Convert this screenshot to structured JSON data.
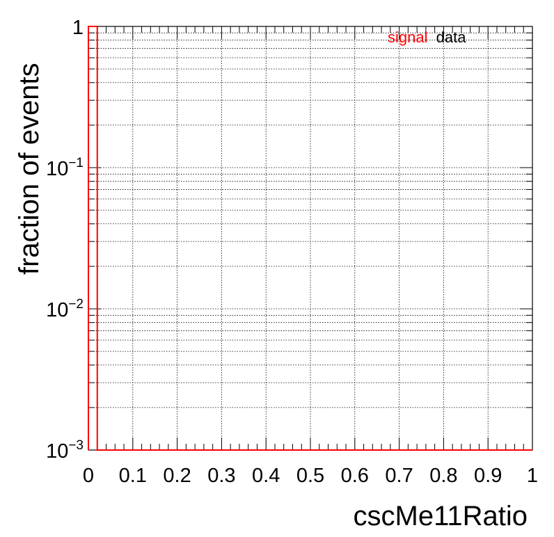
{
  "chart_data": {
    "type": "line",
    "xlabel": "cscMe11Ratio",
    "ylabel": "fraction of events",
    "xlim": [
      0,
      1
    ],
    "ylim": [
      0.001,
      1
    ],
    "y_scale": "log",
    "grid": true,
    "legend": {
      "placement": "top-right",
      "entries": [
        "signal",
        "data"
      ]
    },
    "x_ticks": [
      "0",
      "0.1",
      "0.2",
      "0.3",
      "0.4",
      "0.5",
      "0.6",
      "0.7",
      "0.8",
      "0.9",
      "1"
    ],
    "y_ticks": [
      {
        "value": 1,
        "base": "1",
        "exp": ""
      },
      {
        "value": 0.1,
        "base": "10",
        "exp": "−1"
      },
      {
        "value": 0.01,
        "base": "10",
        "exp": "−2"
      },
      {
        "value": 0.001,
        "base": "10",
        "exp": "−3"
      }
    ],
    "series": [
      {
        "name": "signal",
        "color": "#ff0000",
        "style": "step",
        "bin_edges": [
          0,
          0.02,
          1
        ],
        "values": [
          1,
          0
        ]
      },
      {
        "name": "data",
        "color": "#000000",
        "style": "step",
        "bin_edges": [],
        "values": []
      }
    ]
  }
}
